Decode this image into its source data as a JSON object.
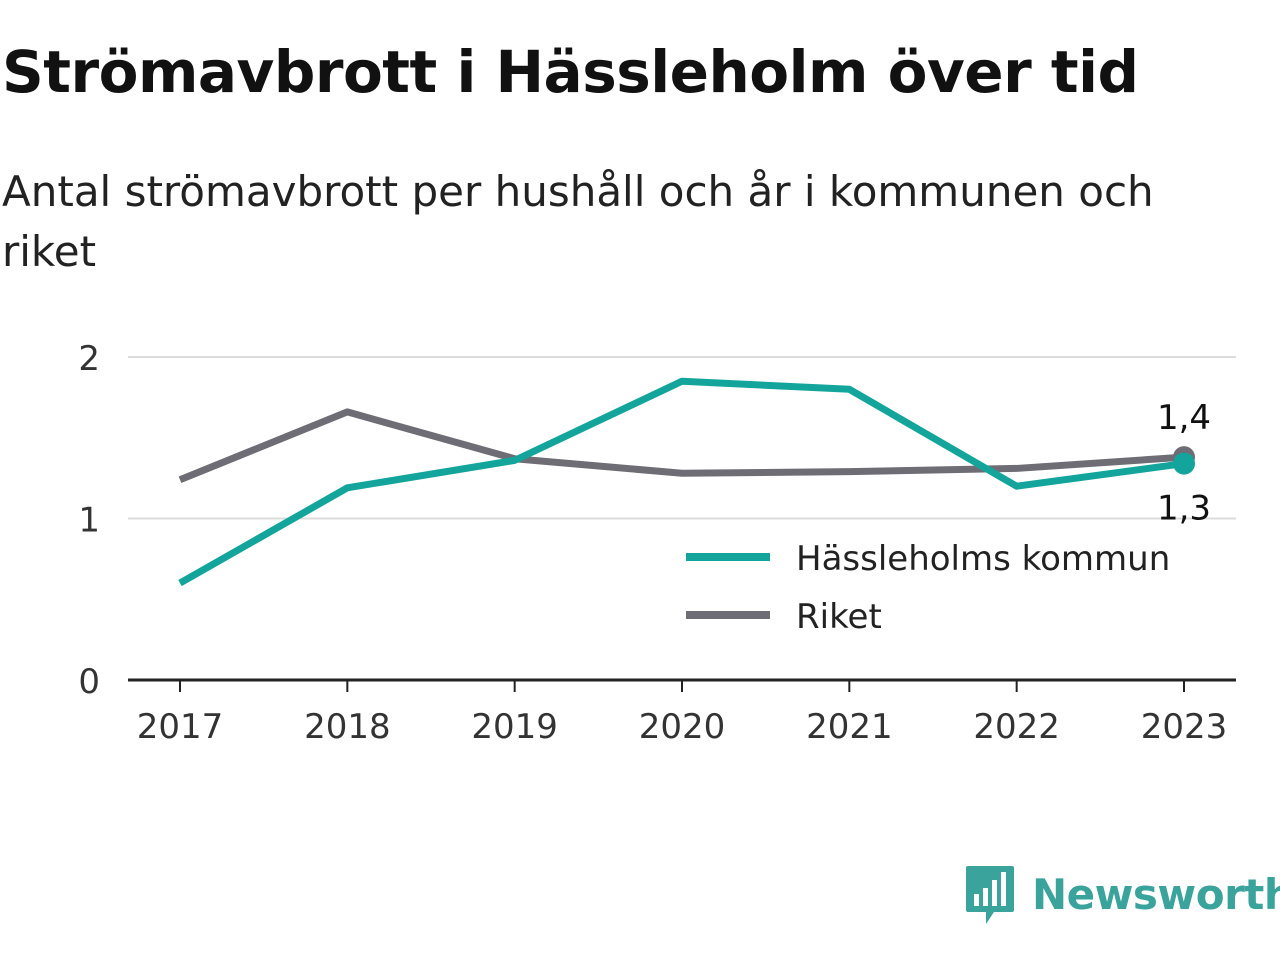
{
  "header": {
    "title": "Strömavbrott i Hässleholm över tid",
    "subtitle": "Antal strömavbrott per hushåll och år i kommunen och riket"
  },
  "chart_data": {
    "type": "line",
    "categories": [
      "2017",
      "2018",
      "2019",
      "2020",
      "2021",
      "2022",
      "2023"
    ],
    "ylim": [
      0,
      2
    ],
    "yticks": [
      "0",
      "1",
      "2"
    ],
    "grid": true,
    "legend_position": "bottom-right",
    "series": [
      {
        "name": "Hässleholms kommun",
        "color": "#13a59b",
        "values": [
          0.6,
          1.19,
          1.36,
          1.85,
          1.8,
          1.2,
          1.34
        ],
        "end_label": "1,3"
      },
      {
        "name": "Riket",
        "color": "#6e6d75",
        "values": [
          1.24,
          1.66,
          1.37,
          1.28,
          1.29,
          1.31,
          1.38
        ],
        "end_label": "1,4"
      }
    ]
  },
  "brand": {
    "name": "Newsworthy",
    "color": "#3aa39b",
    "icon": "bar-chart-speech-bubble-icon"
  }
}
